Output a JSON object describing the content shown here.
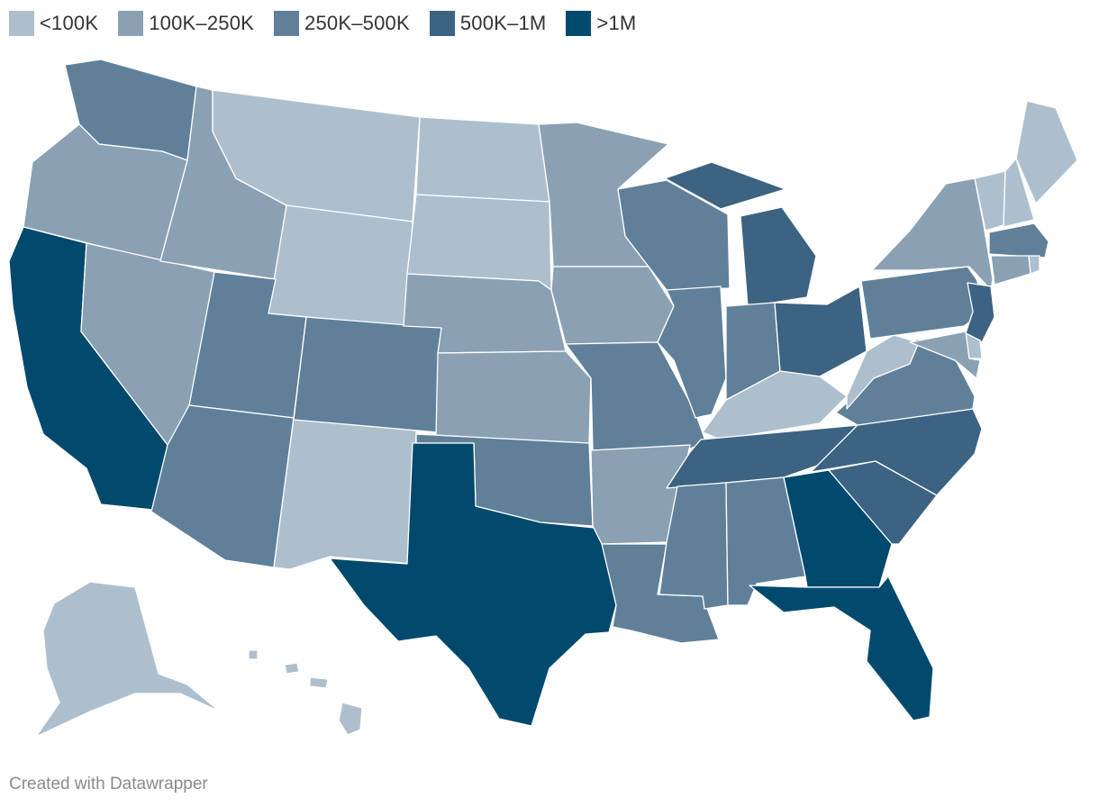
{
  "legend": [
    {
      "label": "<100K",
      "color": "#adbfcd"
    },
    {
      "label": "100K–250K",
      "color": "#8aa1b4"
    },
    {
      "label": "250K–500K",
      "color": "#60809a"
    },
    {
      "label": "500K–1M",
      "color": "#3c6381"
    },
    {
      "label": ">1M",
      "color": "#014a6d"
    }
  ],
  "states": [
    {
      "code": "WA",
      "class": 3
    },
    {
      "code": "OR",
      "class": 2
    },
    {
      "code": "CA",
      "class": 5
    },
    {
      "code": "NV",
      "class": 2
    },
    {
      "code": "ID",
      "class": 2
    },
    {
      "code": "MT",
      "class": 1
    },
    {
      "code": "WY",
      "class": 1
    },
    {
      "code": "UT",
      "class": 3
    },
    {
      "code": "AZ",
      "class": 3
    },
    {
      "code": "NM",
      "class": 1
    },
    {
      "code": "CO",
      "class": 3
    },
    {
      "code": "ND",
      "class": 1
    },
    {
      "code": "SD",
      "class": 1
    },
    {
      "code": "NE",
      "class": 2
    },
    {
      "code": "KS",
      "class": 2
    },
    {
      "code": "OK",
      "class": 3
    },
    {
      "code": "TX",
      "class": 5
    },
    {
      "code": "MN",
      "class": 2
    },
    {
      "code": "IA",
      "class": 2
    },
    {
      "code": "MO",
      "class": 3
    },
    {
      "code": "AR",
      "class": 2
    },
    {
      "code": "LA",
      "class": 3
    },
    {
      "code": "WI",
      "class": 3
    },
    {
      "code": "IL",
      "class": 3
    },
    {
      "code": "MI",
      "class": 4
    },
    {
      "code": "IN",
      "class": 3
    },
    {
      "code": "OH",
      "class": 4
    },
    {
      "code": "KY",
      "class": 1
    },
    {
      "code": "TN",
      "class": 4
    },
    {
      "code": "MS",
      "class": 3
    },
    {
      "code": "AL",
      "class": 3
    },
    {
      "code": "GA",
      "class": 5
    },
    {
      "code": "FL",
      "class": 5
    },
    {
      "code": "SC",
      "class": 4
    },
    {
      "code": "NC",
      "class": 4
    },
    {
      "code": "VA",
      "class": 3
    },
    {
      "code": "WV",
      "class": 1
    },
    {
      "code": "PA",
      "class": 3
    },
    {
      "code": "NY",
      "class": 2
    },
    {
      "code": "VT",
      "class": 1
    },
    {
      "code": "NH",
      "class": 1
    },
    {
      "code": "ME",
      "class": 1
    },
    {
      "code": "MA",
      "class": 3
    },
    {
      "code": "CT",
      "class": 2
    },
    {
      "code": "RI",
      "class": 1
    },
    {
      "code": "NJ",
      "class": 4
    },
    {
      "code": "DE",
      "class": 1
    },
    {
      "code": "MD",
      "class": 2
    },
    {
      "code": "AK",
      "class": 1
    },
    {
      "code": "HI",
      "class": 1
    }
  ],
  "footer": "Created with Datawrapper"
}
